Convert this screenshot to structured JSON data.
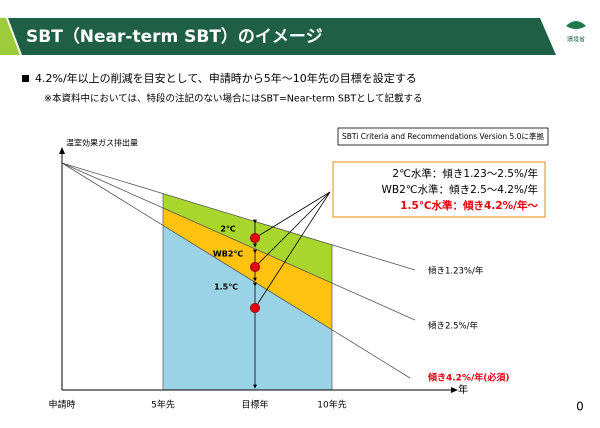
{
  "header": {
    "title": "SBT（Near-term SBT）のイメージ",
    "logo": "環境省"
  },
  "bullets": [
    "4.2%/年以上の削減を目安として、申請時から5年～10年先の目標を設定する",
    "※本資料中においては、特段の注記のない場合にはSBT=Near-term SBTとして記載する"
  ],
  "note": "SBTi Criteria and Recommendations Version 5.0に準拠",
  "diagram": {
    "y_axis_label": "温室効果ガス排出量",
    "x_axis_label": "年",
    "x_labels": [
      "申請時",
      "5年先",
      "目標年",
      "10年先"
    ],
    "level_labels": [
      "2℃",
      "WB2℃",
      "1.5℃"
    ],
    "callout": [
      "2℃水準：傾き1.23～2.5%/年",
      "WB2℃水準：傾き2.5～4.2%/年",
      "1.5℃水準：傾き4.2%/年～"
    ],
    "line_labels": [
      "傾き1.23%/年",
      "傾き2.5%/年",
      "傾き4.2%/年(必須)"
    ]
  },
  "page_number": "0"
}
